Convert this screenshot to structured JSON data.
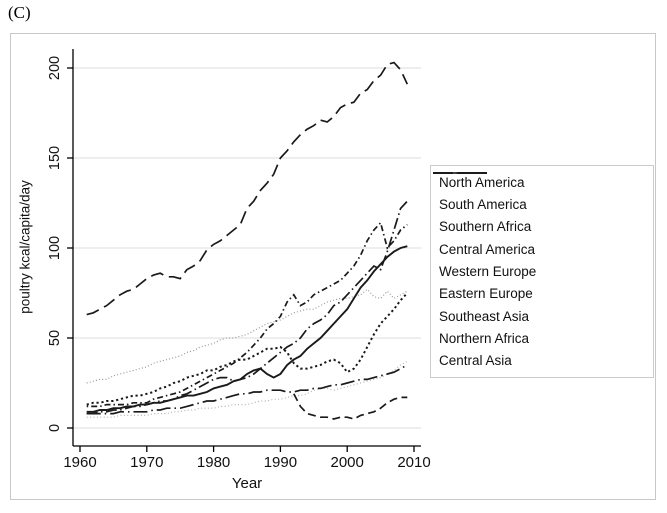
{
  "figure_label": "(C)",
  "colors": {
    "axis": "#000000",
    "gridline": "#dcdcdc",
    "line_black": "#1a1a1a",
    "line_gray": "#999999",
    "line_light_gray": "#b3b3b3",
    "border": "#c8c8c8"
  },
  "chart_data": {
    "type": "line",
    "title": "",
    "xlabel": "Year",
    "ylabel": "poultry kcal/capita/day",
    "xlim": [
      1959,
      2011
    ],
    "ylim": [
      0,
      210
    ],
    "xticks": [
      1960,
      1970,
      1980,
      1990,
      2000,
      2010
    ],
    "yticks": [
      0,
      50,
      100,
      150,
      200
    ],
    "grid": "horizontal",
    "legend_position": "right-outside",
    "x_step_years": 1,
    "series": [
      {
        "name": "North America",
        "dash": "13,6",
        "color": "#1a1a1a",
        "width": 1.7,
        "x_start": 1961,
        "values": [
          63,
          64,
          66,
          68,
          71,
          74,
          76,
          77,
          80,
          83,
          85,
          86,
          84,
          84,
          83,
          88,
          90,
          93,
          99,
          102,
          104,
          107,
          110,
          113,
          122,
          126,
          132,
          136,
          141,
          150,
          154,
          159,
          163,
          166,
          168,
          171,
          170,
          173,
          178,
          180,
          181,
          186,
          188,
          193,
          196,
          202,
          203,
          199,
          191
        ]
      },
      {
        "name": "South America",
        "dash": "11,3.5,1.5,3.5",
        "color": "#1a1a1a",
        "width": 1.7,
        "x_start": 1961,
        "values": [
          8,
          8,
          9,
          9,
          10,
          10,
          11,
          12,
          12,
          13,
          14,
          15,
          15,
          16,
          18,
          19,
          21,
          23,
          25,
          27,
          28,
          28,
          26,
          27,
          28,
          30,
          33,
          36,
          39,
          42,
          45,
          47,
          50,
          55,
          58,
          60,
          63,
          68,
          70,
          74,
          78,
          82,
          86,
          90,
          88,
          98,
          110,
          122,
          126
        ]
      },
      {
        "name": "Southern Africa",
        "dash": "1.5,3,6,3",
        "color": "#1a1a1a",
        "width": 1.7,
        "x_start": 1961,
        "values": [
          12,
          12,
          12,
          13,
          13,
          13,
          13,
          14,
          14,
          14,
          16,
          17,
          18,
          19,
          20,
          22,
          24,
          26,
          28,
          30,
          32,
          34,
          36,
          39,
          42,
          46,
          50,
          55,
          58,
          62,
          70,
          74,
          68,
          70,
          74,
          76,
          78,
          80,
          82,
          86,
          90,
          96,
          104,
          110,
          114,
          100,
          104,
          110,
          113
        ]
      },
      {
        "name": "Central America",
        "dash": "",
        "color": "#1a1a1a",
        "width": 1.9,
        "x_start": 1961,
        "values": [
          9,
          9,
          10,
          10,
          11,
          11,
          12,
          12,
          13,
          13,
          14,
          14,
          15,
          16,
          17,
          18,
          18,
          19,
          20,
          22,
          23,
          24,
          26,
          27,
          30,
          32,
          33,
          30,
          28,
          30,
          35,
          38,
          40,
          44,
          47,
          50,
          54,
          58,
          62,
          66,
          72,
          78,
          82,
          87,
          91,
          95,
          98,
          100,
          101
        ]
      },
      {
        "name": "Western Europe",
        "dash": "1,2.2",
        "color": "#999999",
        "width": 1.2,
        "x_start": 1961,
        "values": [
          25,
          26,
          27,
          27,
          29,
          30,
          31,
          32,
          33,
          34,
          36,
          37,
          38,
          39,
          40,
          42,
          43,
          45,
          46,
          47,
          49,
          50,
          50,
          51,
          52,
          54,
          56,
          58,
          59,
          60,
          62,
          64,
          65,
          66,
          66,
          68,
          70,
          71,
          72,
          72,
          73,
          74,
          77,
          73,
          72,
          76,
          72,
          74,
          76
        ]
      },
      {
        "name": "Eastern Europe",
        "dash": "2.2,2.8",
        "color": "#1a1a1a",
        "width": 2.0,
        "x_start": 1961,
        "values": [
          13,
          14,
          14,
          15,
          15,
          16,
          17,
          18,
          18,
          19,
          20,
          22,
          23,
          25,
          26,
          28,
          29,
          30,
          32,
          32,
          34,
          35,
          37,
          38,
          38,
          40,
          42,
          44,
          44,
          45,
          42,
          36,
          33,
          33,
          34,
          35,
          37,
          38,
          36,
          31,
          33,
          38,
          45,
          52,
          58,
          62,
          66,
          71,
          75
        ]
      },
      {
        "name": "Southeast Asia",
        "dash": "1,2.4",
        "color": "#b3b3b3",
        "width": 1.2,
        "x_start": 1961,
        "values": [
          6,
          6,
          6,
          6,
          6,
          7,
          7,
          7,
          7,
          7,
          8,
          8,
          8,
          9,
          9,
          10,
          10,
          11,
          11,
          11,
          12,
          12,
          13,
          13,
          13,
          14,
          15,
          15,
          16,
          16,
          17,
          18,
          18,
          19,
          21,
          22,
          22,
          21,
          22,
          23,
          24,
          25,
          26,
          27,
          28,
          30,
          32,
          35,
          37
        ]
      },
      {
        "name": "Northern Africa",
        "dash": "14,4,1.5,4",
        "color": "#1a1a1a",
        "width": 1.7,
        "x_start": 1961,
        "values": [
          8,
          8,
          8,
          8,
          8,
          9,
          9,
          9,
          9,
          9,
          10,
          10,
          11,
          11,
          11,
          12,
          13,
          14,
          15,
          15,
          16,
          17,
          18,
          19,
          19,
          20,
          20,
          21,
          21,
          21,
          20,
          20,
          21,
          21,
          22,
          22,
          23,
          24,
          24,
          25,
          26,
          27,
          27,
          28,
          29,
          30,
          31,
          33,
          35
        ]
      },
      {
        "name": "Central Asia",
        "dash": "8,4.5",
        "color": "#1a1a1a",
        "width": 1.7,
        "x_start": 1992,
        "values": [
          19,
          12,
          8,
          7,
          6,
          6,
          5,
          6,
          6,
          5,
          7,
          8,
          9,
          11,
          14,
          16,
          17,
          17
        ]
      }
    ]
  }
}
